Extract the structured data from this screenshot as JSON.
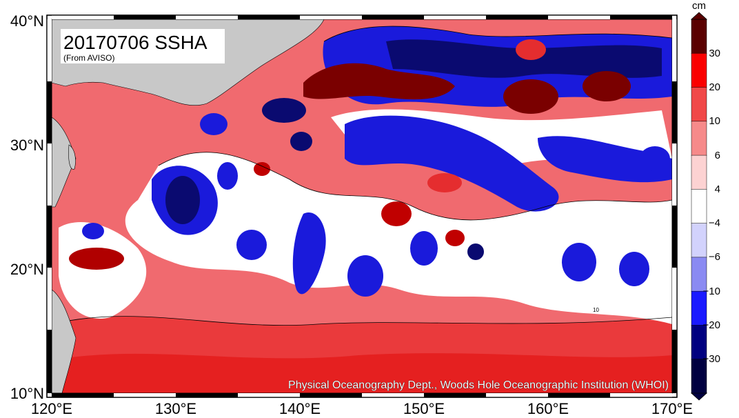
{
  "map": {
    "title": "20170706 SSHA",
    "subtitle": "(From AVISO)",
    "credit": "Physical Oceanography Dept., Woods Hole Oceanographic Institution (WHOI)",
    "longitude_labels": [
      "120°E",
      "130°E",
      "140°E",
      "150°E",
      "160°E",
      "170°E"
    ],
    "latitude_labels": [
      "40°N",
      "30°N",
      "20°N",
      "10°N"
    ],
    "extent": {
      "lon_min": 120,
      "lon_max": 170,
      "lat_min": 10,
      "lat_max": 40
    },
    "contour_label": "10",
    "colors": {
      "land": "#c8c8c8",
      "ocean_positive": "#f0606a",
      "ocean_strong_positive": "#e52d2f",
      "ocean_neutral": "#ffffff",
      "ocean_negative": "#1a1adb"
    }
  },
  "colorbar": {
    "unit": "cm",
    "tick_labels": [
      "30",
      "20",
      "10",
      "6",
      "4",
      "−4",
      "−6",
      "−10",
      "−20",
      "−30"
    ],
    "bins": [
      {
        "color": "#5a0000"
      },
      {
        "color": "#fa0000"
      },
      {
        "color": "#f04848"
      },
      {
        "color": "#f68a8a"
      },
      {
        "color": "#fcd2d2"
      },
      {
        "color": "#ffffff"
      },
      {
        "color": "#d2d2fc"
      },
      {
        "color": "#8a8af2"
      },
      {
        "color": "#1a1aff"
      },
      {
        "color": "#000080"
      },
      {
        "color": "#000040"
      }
    ]
  }
}
